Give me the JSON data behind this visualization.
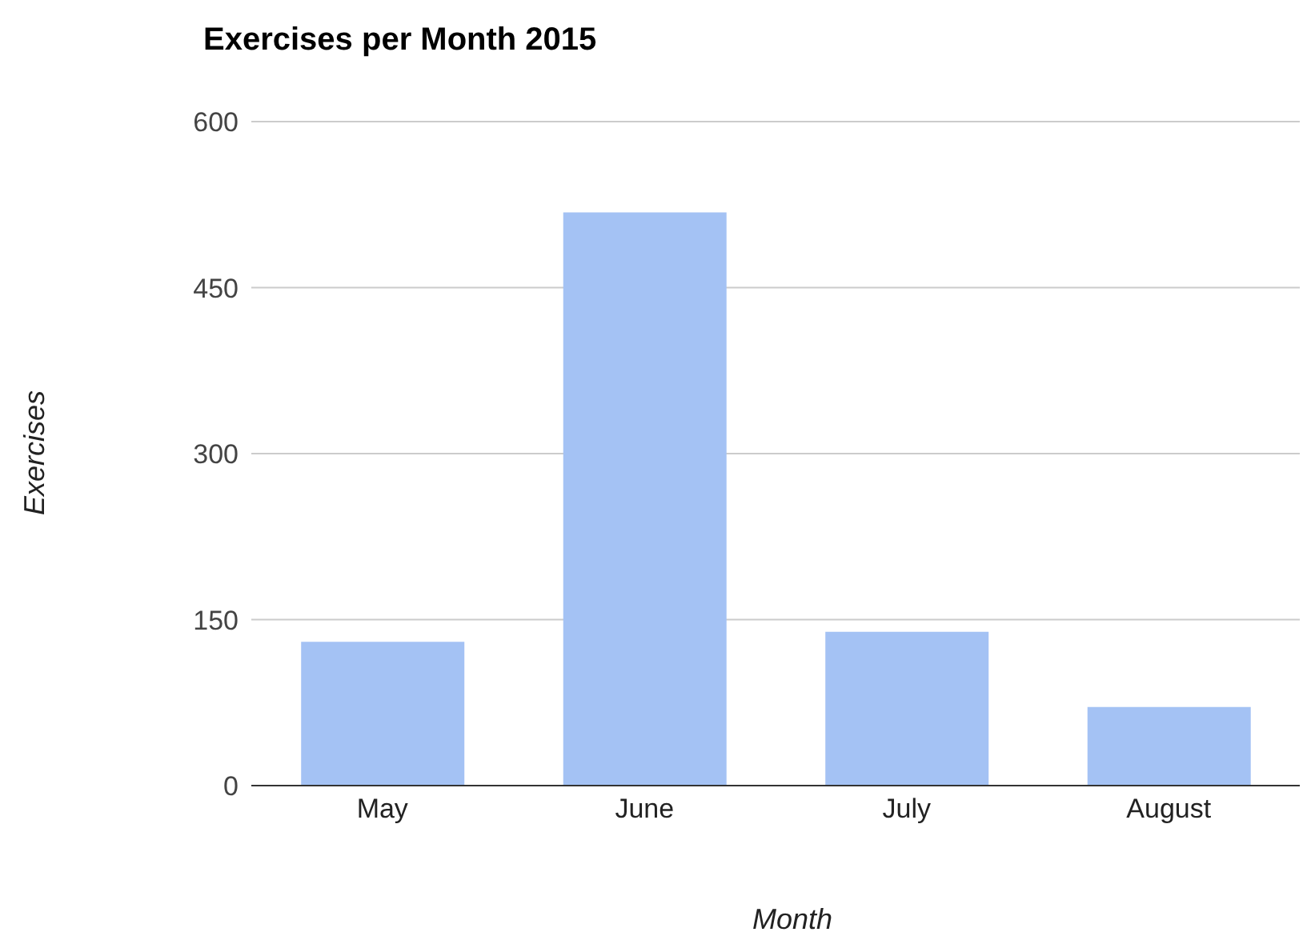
{
  "chart_data": {
    "type": "bar",
    "title": "Exercises per Month 2015",
    "xlabel": "Month",
    "ylabel": "Exercises",
    "categories": [
      "May",
      "June",
      "July",
      "August"
    ],
    "values": [
      130,
      518,
      139,
      71
    ],
    "color": "#a4c2f4",
    "ylim": [
      0,
      600
    ],
    "yticks": [
      0,
      150,
      300,
      450,
      600
    ],
    "grid": "y"
  }
}
